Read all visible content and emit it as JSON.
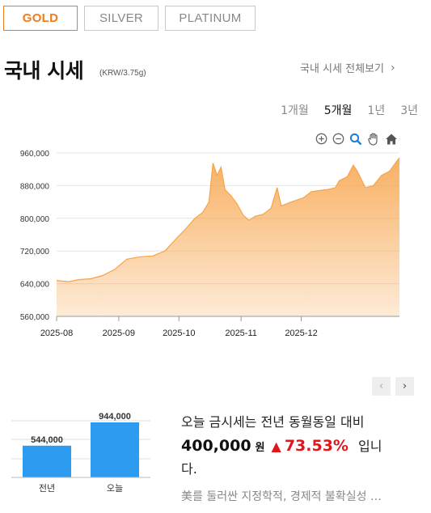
{
  "tabs": [
    {
      "label": "GOLD",
      "active": true
    },
    {
      "label": "SILVER",
      "active": false
    },
    {
      "label": "PLATINUM",
      "active": false
    }
  ],
  "header": {
    "title": "국내 시세",
    "unit": "(KRW/3.75g)",
    "view_all": "국내 시세 전체보기"
  },
  "periods": [
    {
      "label": "1개월",
      "active": false
    },
    {
      "label": "5개월",
      "active": true
    },
    {
      "label": "1년",
      "active": false
    },
    {
      "label": "3년",
      "active": false
    }
  ],
  "toolbar": [
    "zoom-in-icon",
    "zoom-out-icon",
    "magnifier-icon",
    "pan-hand-icon",
    "home-icon"
  ],
  "chart_data": {
    "type": "area",
    "x_labels": [
      "2025-08",
      "2025-09",
      "2025-10",
      "2025-11",
      "2025-12"
    ],
    "y_ticks": [
      "960,000",
      "880,000",
      "800,000",
      "720,000",
      "640,000",
      "560,000"
    ],
    "ylim": [
      560000,
      960000
    ],
    "grid": true,
    "color": "#f7a247",
    "points": [
      [
        "2025-08-01",
        648000
      ],
      [
        "2025-08-07",
        645000
      ],
      [
        "2025-08-12",
        650000
      ],
      [
        "2025-08-18",
        652000
      ],
      [
        "2025-08-24",
        660000
      ],
      [
        "2025-08-30",
        675000
      ],
      [
        "2025-09-05",
        700000
      ],
      [
        "2025-09-12",
        706000
      ],
      [
        "2025-09-18",
        708000
      ],
      [
        "2025-09-24",
        720000
      ],
      [
        "2025-09-30",
        752000
      ],
      [
        "2025-10-04",
        772000
      ],
      [
        "2025-10-09",
        800000
      ],
      [
        "2025-10-13",
        815000
      ],
      [
        "2025-10-16",
        840000
      ],
      [
        "2025-10-18",
        935000
      ],
      [
        "2025-10-20",
        905000
      ],
      [
        "2025-10-22",
        925000
      ],
      [
        "2025-10-24",
        870000
      ],
      [
        "2025-10-27",
        855000
      ],
      [
        "2025-10-30",
        835000
      ],
      [
        "2025-11-02",
        808000
      ],
      [
        "2025-11-05",
        795000
      ],
      [
        "2025-11-08",
        805000
      ],
      [
        "2025-11-12",
        810000
      ],
      [
        "2025-11-16",
        825000
      ],
      [
        "2025-11-19",
        875000
      ],
      [
        "2025-11-21",
        830000
      ],
      [
        "2025-11-25",
        838000
      ],
      [
        "2025-11-29",
        845000
      ],
      [
        "2025-12-02",
        850000
      ],
      [
        "2025-12-06",
        865000
      ],
      [
        "2025-12-10",
        868000
      ],
      [
        "2025-12-14",
        870000
      ],
      [
        "2025-12-18",
        875000
      ],
      [
        "2025-12-20",
        892000
      ],
      [
        "2025-12-24",
        902000
      ],
      [
        "2025-12-27",
        930000
      ],
      [
        "2025-12-29",
        915000
      ],
      [
        "2026-01-02",
        875000
      ],
      [
        "2026-01-06",
        880000
      ],
      [
        "2026-01-10",
        905000
      ],
      [
        "2026-01-14",
        915000
      ],
      [
        "2026-01-18",
        942000
      ],
      [
        "2026-01-19",
        948000
      ]
    ]
  },
  "pager": {
    "prev": "‹",
    "next": "›"
  },
  "comparison": {
    "chart_data": {
      "type": "bar",
      "categories": [
        "전년",
        "오늘"
      ],
      "values": [
        544000,
        944000
      ],
      "value_labels": [
        "544,000",
        "944,000"
      ],
      "color": "#2c9bf0"
    },
    "line1": "오늘 금시세는 전년 동월동일 대비",
    "amount": "400,000",
    "won": "원",
    "arrow": "▲",
    "percent": "73.53%",
    "tail": "입니",
    "line3": "다.",
    "news": "美를 둘러싼 지정학적, 경제적 불확실성 …"
  }
}
